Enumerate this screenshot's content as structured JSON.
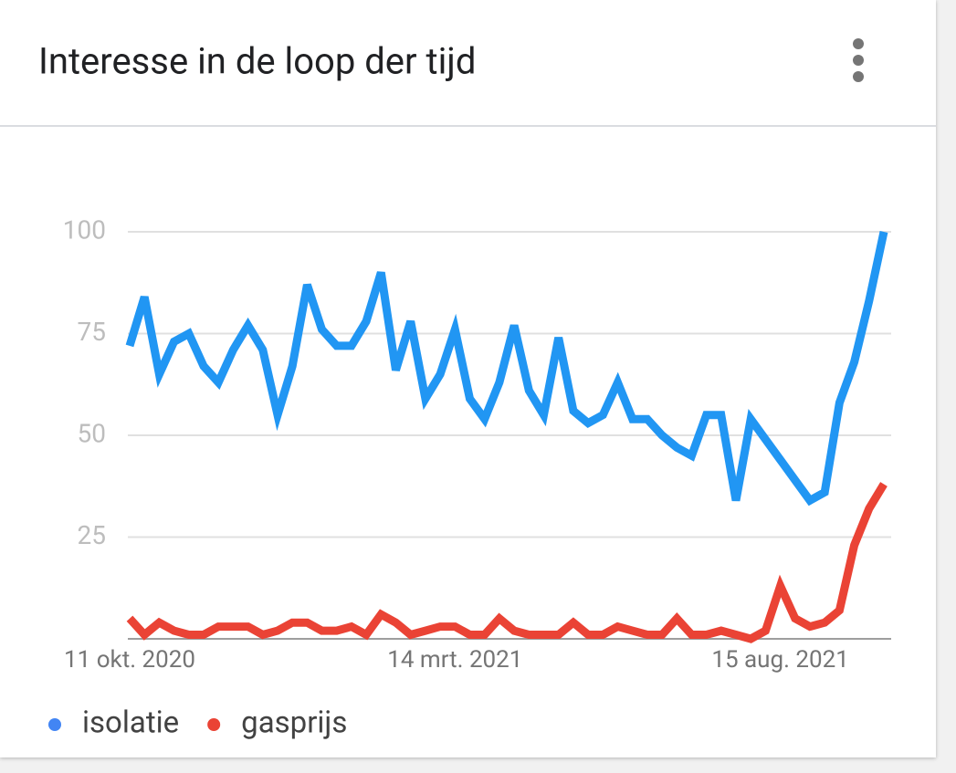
{
  "chart_data": {
    "type": "line",
    "title": "Interesse in de loop der tijd",
    "categories": [
      "11 okt. 2020",
      null,
      null,
      null,
      null,
      null,
      null,
      null,
      null,
      null,
      null,
      null,
      null,
      null,
      null,
      null,
      null,
      null,
      null,
      null,
      null,
      null,
      "14 mrt. 2021",
      null,
      null,
      null,
      null,
      null,
      null,
      null,
      null,
      null,
      null,
      null,
      null,
      null,
      null,
      null,
      null,
      null,
      null,
      null,
      null,
      null,
      "15 aug. 2021",
      null,
      null,
      null,
      null,
      null,
      null,
      null
    ],
    "series": [
      {
        "name": "isolatie",
        "color": "#2196f3",
        "legend_color": "#4285f4",
        "values": [
          72,
          84,
          65,
          73,
          75,
          67,
          63,
          71,
          77,
          71,
          55,
          67,
          87,
          76,
          72,
          72,
          78,
          90,
          66,
          78,
          59,
          65,
          76,
          59,
          54,
          63,
          77,
          61,
          55,
          74,
          56,
          53,
          55,
          63,
          54,
          54,
          50,
          47,
          45,
          55,
          55,
          34,
          54,
          49,
          44,
          39,
          34,
          36,
          58,
          68,
          83,
          100
        ]
      },
      {
        "name": "gasprijs",
        "color": "#ea4335",
        "legend_color": "#ea4335",
        "values": [
          5,
          1,
          4,
          2,
          1,
          1,
          3,
          3,
          3,
          1,
          2,
          4,
          4,
          2,
          2,
          3,
          1,
          6,
          4,
          1,
          2,
          3,
          3,
          1,
          1,
          5,
          2,
          1,
          1,
          1,
          4,
          1,
          1,
          3,
          2,
          1,
          1,
          5,
          1,
          1,
          2,
          1,
          0,
          2,
          13,
          5,
          3,
          4,
          7,
          23,
          32,
          38
        ]
      }
    ],
    "ylim": [
      0,
      100
    ],
    "yticks": [
      25,
      50,
      75,
      100
    ],
    "grid": true
  }
}
